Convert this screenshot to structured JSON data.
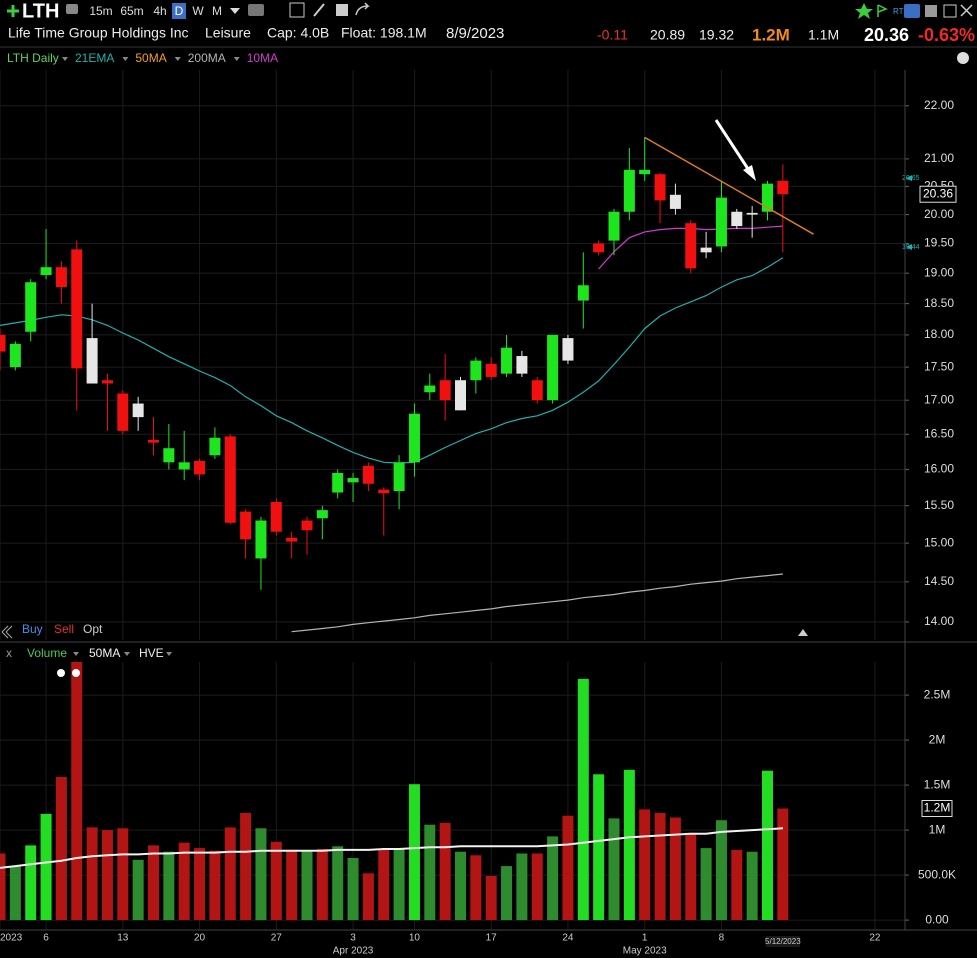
{
  "toolbar": {
    "symbol": "LTH",
    "intervals": [
      "15m",
      "65m",
      "4h",
      "D",
      "W",
      "M"
    ]
  },
  "quote": {
    "name": "Life Time Group Holdings Inc",
    "sector": "Leisure",
    "cap": "Cap: 4.0B",
    "float": "Float: 198.1M",
    "date": "8/9/2023",
    "change": "-0.11",
    "high": "20.89",
    "low": "19.32",
    "volume": "1.2M",
    "avg_volume": "1.1M",
    "last": "20.36",
    "change_pct": "-0.63%"
  },
  "trade_buttons": [
    "Buy",
    "Sell",
    "Opt"
  ],
  "chart_data": [
    {
      "type": "candlestick",
      "title": "LTH Daily",
      "log_scale": true,
      "grid": true,
      "categories": [
        "2023-03-01",
        "2023-03-02",
        "2023-03-03",
        "2023-03-06",
        "2023-03-07",
        "2023-03-08",
        "2023-03-09",
        "2023-03-10",
        "2023-03-13",
        "2023-03-14",
        "2023-03-15",
        "2023-03-16",
        "2023-03-17",
        "2023-03-20",
        "2023-03-21",
        "2023-03-22",
        "2023-03-23",
        "2023-03-24",
        "2023-03-27",
        "2023-03-28",
        "2023-03-29",
        "2023-03-30",
        "2023-03-31",
        "2023-04-03",
        "2023-04-04",
        "2023-04-05",
        "2023-04-06",
        "2023-04-10",
        "2023-04-11",
        "2023-04-12",
        "2023-04-13",
        "2023-04-14",
        "2023-04-17",
        "2023-04-18",
        "2023-04-19",
        "2023-04-20",
        "2023-04-21",
        "2023-04-24",
        "2023-04-25",
        "2023-04-26",
        "2023-04-27",
        "2023-04-28",
        "2023-05-01",
        "2023-05-02",
        "2023-05-03",
        "2023-05-04",
        "2023-05-05",
        "2023-05-08",
        "2023-05-09",
        "2023-05-10",
        "2023-05-11",
        "2023-05-12",
        "2023-05-15",
        "2023-05-16",
        "2023-05-17",
        "2023-05-18",
        "2023-05-19",
        "2023-05-22",
        "2023-05-23"
      ],
      "open": [
        18.0,
        17.5,
        18.05,
        18.97,
        19.1,
        19.4,
        17.95,
        17.3,
        17.1,
        16.95,
        16.42,
        16.1,
        16.0,
        16.12,
        16.2,
        16.47,
        15.42,
        14.8,
        15.55,
        15.07,
        15.3,
        15.33,
        15.68,
        15.82,
        16.05,
        15.72,
        15.7,
        16.1,
        17.12,
        17.3,
        16.85,
        17.3,
        17.55,
        17.4,
        17.4,
        17.3,
        17.0,
        17.6,
        18.55,
        19.5,
        19.55,
        20.05,
        20.72,
        20.72,
        20.1,
        19.85,
        19.35,
        19.45,
        19.8,
        20.0,
        20.05,
        20.6,
        null,
        null,
        null,
        null,
        null,
        null,
        null
      ],
      "high": [
        18.1,
        17.9,
        18.9,
        19.75,
        19.2,
        19.55,
        18.5,
        17.4,
        17.15,
        17.05,
        16.75,
        16.65,
        16.55,
        16.15,
        16.6,
        16.5,
        15.45,
        15.35,
        15.6,
        15.15,
        15.35,
        15.5,
        16.0,
        15.95,
        16.1,
        15.75,
        16.2,
        16.95,
        17.4,
        17.7,
        17.35,
        17.65,
        17.65,
        18.0,
        17.75,
        17.35,
        18.0,
        18.0,
        19.35,
        19.55,
        20.1,
        21.2,
        21.4,
        20.75,
        20.55,
        19.9,
        19.7,
        20.6,
        20.1,
        20.15,
        20.6,
        20.9,
        null,
        null,
        null,
        null,
        null,
        null,
        null
      ],
      "low": [
        17.45,
        17.45,
        17.9,
        18.9,
        18.5,
        16.85,
        17.25,
        16.55,
        16.5,
        16.55,
        16.2,
        16.0,
        15.85,
        15.85,
        16.15,
        15.25,
        14.8,
        14.4,
        15.1,
        14.8,
        14.85,
        15.05,
        15.6,
        15.55,
        15.7,
        15.1,
        15.45,
        15.9,
        17.0,
        16.7,
        16.85,
        17.1,
        17.3,
        17.35,
        17.35,
        16.95,
        16.95,
        17.55,
        18.1,
        19.3,
        19.3,
        19.9,
        20.6,
        19.85,
        20.0,
        19.0,
        19.25,
        19.35,
        19.75,
        19.6,
        19.9,
        19.35,
        null,
        null,
        null,
        null,
        null,
        null,
        null
      ],
      "close": [
        17.74,
        17.86,
        18.85,
        19.1,
        18.77,
        17.48,
        17.25,
        17.25,
        16.55,
        16.75,
        16.38,
        16.3,
        16.1,
        15.93,
        16.45,
        15.27,
        15.05,
        15.3,
        15.15,
        15.02,
        15.17,
        15.44,
        15.95,
        15.88,
        15.8,
        15.67,
        16.1,
        16.8,
        17.22,
        17.0,
        17.3,
        17.6,
        17.35,
        17.8,
        17.67,
        17.0,
        18.0,
        17.95,
        18.8,
        19.35,
        20.05,
        20.8,
        20.8,
        20.25,
        20.35,
        19.08,
        19.43,
        20.3,
        20.05,
        20.03,
        20.55,
        20.36,
        null,
        null,
        null,
        null,
        null,
        null,
        null
      ],
      "colors": [
        "#f01010",
        "#1ee61e",
        "#1ee61e",
        "#1ee61e",
        "#f01010",
        "#f01010",
        "#e6e6e6",
        "#f01010",
        "#f01010",
        "#e6e6e6",
        "#f01010",
        "#1ee61e",
        "#1ee61e",
        "#f01010",
        "#1ee61e",
        "#f01010",
        "#f01010",
        "#1ee61e",
        "#f01010",
        "#f01010",
        "#f01010",
        "#1ee61e",
        "#1ee61e",
        "#1ee61e",
        "#f01010",
        "#f01010",
        "#1ee61e",
        "#1ee61e",
        "#1ee61e",
        "#f01010",
        "#e6e6e6",
        "#1ee61e",
        "#f01010",
        "#1ee61e",
        "#e6e6e6",
        "#f01010",
        "#1ee61e",
        "#e6e6e6",
        "#1ee61e",
        "#f01010",
        "#1ee61e",
        "#1ee61e",
        "#1ee61e",
        "#f01010",
        "#e6e6e6",
        "#f01010",
        "#e6e6e6",
        "#1ee61e",
        "#e6e6e6",
        "#e6e6e6",
        "#1ee61e",
        "#f01010",
        null,
        null,
        null,
        null,
        null,
        null,
        null
      ],
      "series": [
        {
          "name": "21EMA",
          "color": "#1fb0b0",
          "values": [
            18.15,
            18.19,
            18.23,
            18.28,
            18.32,
            18.3,
            18.24,
            18.15,
            18.03,
            17.92,
            17.79,
            17.66,
            17.55,
            17.44,
            17.34,
            17.22,
            17.05,
            16.92,
            16.77,
            16.67,
            16.55,
            16.45,
            16.34,
            16.24,
            16.16,
            16.1,
            16.09,
            16.1,
            16.2,
            16.31,
            16.41,
            16.51,
            16.58,
            16.67,
            16.73,
            16.77,
            16.85,
            16.97,
            17.12,
            17.29,
            17.54,
            17.81,
            18.1,
            18.3,
            18.43,
            18.53,
            18.63,
            18.77,
            18.89,
            18.96,
            19.1,
            19.26,
            null,
            null,
            null,
            null,
            null,
            null,
            null
          ]
        },
        {
          "name": "50MA",
          "color": "#f0a020",
          "values": [
            null,
            null,
            null,
            null,
            null,
            null,
            null,
            null,
            null,
            null,
            null,
            null,
            null,
            null,
            null,
            null,
            null,
            null,
            null,
            null,
            null,
            null,
            null,
            null,
            null,
            null,
            null,
            null,
            null,
            null,
            null,
            null,
            null,
            null,
            null,
            null,
            null,
            null,
            null,
            null,
            null,
            null,
            null,
            null,
            null,
            null,
            null,
            null,
            null,
            null,
            null,
            null,
            null,
            null,
            null,
            null,
            null,
            null,
            null
          ]
        },
        {
          "name": "200MA",
          "color": "#b4b4b4",
          "values": [
            null,
            null,
            null,
            null,
            null,
            null,
            null,
            null,
            null,
            null,
            null,
            null,
            null,
            null,
            null,
            null,
            null,
            null,
            null,
            13.88,
            13.9,
            13.92,
            13.94,
            13.97,
            13.99,
            14.01,
            14.03,
            14.05,
            14.08,
            14.1,
            14.12,
            14.14,
            14.16,
            14.19,
            14.21,
            14.23,
            14.25,
            14.27,
            14.3,
            14.32,
            14.34,
            14.37,
            14.39,
            14.42,
            14.44,
            14.47,
            14.49,
            14.51,
            14.54,
            14.56,
            14.58,
            14.6,
            null,
            null,
            null,
            null,
            null,
            null,
            null
          ]
        },
        {
          "name": "10MA",
          "color": "#d03cd0",
          "values": [
            null,
            null,
            null,
            null,
            null,
            null,
            null,
            null,
            null,
            null,
            null,
            null,
            null,
            null,
            null,
            null,
            null,
            null,
            null,
            null,
            null,
            null,
            null,
            null,
            null,
            null,
            null,
            null,
            null,
            null,
            null,
            null,
            null,
            null,
            null,
            null,
            null,
            null,
            null,
            19.07,
            19.36,
            19.6,
            19.7,
            19.74,
            19.76,
            19.76,
            19.74,
            19.75,
            19.76,
            19.76,
            19.78,
            19.8,
            null,
            null,
            null,
            null,
            null,
            null,
            null
          ]
        }
      ],
      "trendline": {
        "x": [
          "2023-05-01",
          "2023-05-16"
        ],
        "values": [
          21.4,
          19.66
        ],
        "color": "#e07b1a"
      },
      "ylim": [
        13.78,
        22.7
      ],
      "yticks": [
        {
          "value": 14,
          "label": "14.00"
        },
        {
          "value": 14.5,
          "label": "14.50"
        },
        {
          "value": 15,
          "label": "15.00"
        },
        {
          "value": 15.5,
          "label": "15.50"
        },
        {
          "value": 16,
          "label": "16.00"
        },
        {
          "value": 16.5,
          "label": "16.50"
        },
        {
          "value": 17,
          "label": "17.00"
        },
        {
          "value": 17.5,
          "label": "17.50"
        },
        {
          "value": 18,
          "label": "18.00"
        },
        {
          "value": 18.5,
          "label": "18.50"
        },
        {
          "value": 19,
          "label": "19.00"
        },
        {
          "value": 19.5,
          "label": "19.50"
        },
        {
          "value": 20,
          "label": "20.00"
        },
        {
          "value": 20.5,
          "label": "20.50"
        },
        {
          "value": 21,
          "label": "21.00"
        },
        {
          "value": 22,
          "label": "22.00"
        }
      ],
      "xticks": [
        {
          "value": "2023-03-01",
          "label": "2023"
        },
        {
          "value": "2023-03-06",
          "label": "6"
        },
        {
          "value": "2023-03-13",
          "label": "13"
        },
        {
          "value": "2023-03-20",
          "label": "20"
        },
        {
          "value": "2023-03-27",
          "label": "27"
        },
        {
          "value": "2023-04-03",
          "label": "3"
        },
        {
          "value": "2023-04-10",
          "label": "10"
        },
        {
          "value": "2023-04-17",
          "label": "17"
        },
        {
          "value": "2023-04-24",
          "label": "24"
        },
        {
          "value": "2023-05-01",
          "label": "1"
        },
        {
          "value": "2023-05-08",
          "label": "8"
        },
        {
          "value": "2023-05-22",
          "label": "22"
        }
      ],
      "month_ticks": [
        {
          "value": "2023-04-03",
          "label": "Apr 2023"
        },
        {
          "value": "2023-05-01",
          "label": "May 2023"
        }
      ],
      "cursor_date": {
        "value": "2023-05-12",
        "label": "5/12/2023"
      },
      "last_price": 20.36,
      "axis_markers": [
        20.65,
        19.44
      ]
    },
    {
      "type": "bar",
      "close_label": "x",
      "extra_label": "HVE",
      "grid": true,
      "series": [
        {
          "name": "Volume",
          "values": [
            740000,
            600000,
            830000,
            1180000,
            1590000,
            3100000,
            1030000,
            1000000,
            1020000,
            670000,
            830000,
            760000,
            860000,
            800000,
            770000,
            1030000,
            1190000,
            1020000,
            870000,
            780000,
            770000,
            790000,
            820000,
            690000,
            520000,
            780000,
            800000,
            1510000,
            1060000,
            1080000,
            760000,
            720000,
            490000,
            600000,
            740000,
            740000,
            930000,
            1160000,
            2680000,
            1620000,
            1130000,
            1670000,
            1230000,
            1190000,
            1140000,
            970000,
            800000,
            1110000,
            780000,
            760000,
            1660000,
            1240000,
            null,
            null,
            null,
            null,
            null,
            null,
            null
          ],
          "colors": [
            "#b31414",
            "#2e8b2e",
            "#22dd22",
            "#22dd22",
            "#b31414",
            "#b31414",
            "#b31414",
            "#b31414",
            "#b31414",
            "#2e8b2e",
            "#b31414",
            "#2e8b2e",
            "#b31414",
            "#b31414",
            "#b31414",
            "#b31414",
            "#b31414",
            "#2e8b2e",
            "#b31414",
            "#b31414",
            "#2e8b2e",
            "#b31414",
            "#2e8b2e",
            "#2e8b2e",
            "#b31414",
            "#b31414",
            "#2e8b2e",
            "#22dd22",
            "#2e8b2e",
            "#b31414",
            "#2e8b2e",
            "#b31414",
            "#b31414",
            "#2e8b2e",
            "#2e8b2e",
            "#b31414",
            "#2e8b2e",
            "#b31414",
            "#22dd22",
            "#22dd22",
            "#2e8b2e",
            "#22dd22",
            "#b31414",
            "#b31414",
            "#b31414",
            "#b31414",
            "#2e8b2e",
            "#2e8b2e",
            "#b31414",
            "#2e8b2e",
            "#22dd22",
            "#b31414",
            null,
            null,
            null,
            null,
            null,
            null,
            null
          ]
        },
        {
          "name": "50MA",
          "color": "#f2f2f2",
          "values": [
            580000,
            600000,
            620000,
            640000,
            660000,
            690000,
            710000,
            720000,
            730000,
            730000,
            740000,
            740000,
            750000,
            750000,
            750000,
            760000,
            760000,
            770000,
            770000,
            770000,
            770000,
            770000,
            780000,
            780000,
            780000,
            790000,
            790000,
            800000,
            810000,
            810000,
            820000,
            820000,
            820000,
            820000,
            820000,
            820000,
            830000,
            840000,
            860000,
            880000,
            900000,
            920000,
            930000,
            940000,
            950000,
            960000,
            960000,
            980000,
            990000,
            1000000,
            1010000,
            1020000,
            null,
            null,
            null,
            null,
            null,
            null,
            null
          ]
        }
      ],
      "ylim": [
        -110000,
        2890000
      ],
      "yticks": [
        {
          "value": 0,
          "label": "0.00"
        },
        {
          "value": 500000,
          "label": "500.0K"
        },
        {
          "value": 1000000,
          "label": "1M"
        },
        {
          "value": 1500000,
          "label": "1.5M"
        },
        {
          "value": 2000000,
          "label": "2M"
        },
        {
          "value": 2500000,
          "label": "2.5M"
        }
      ],
      "last_value": {
        "value": 1240000,
        "label": "1.2M"
      }
    }
  ]
}
